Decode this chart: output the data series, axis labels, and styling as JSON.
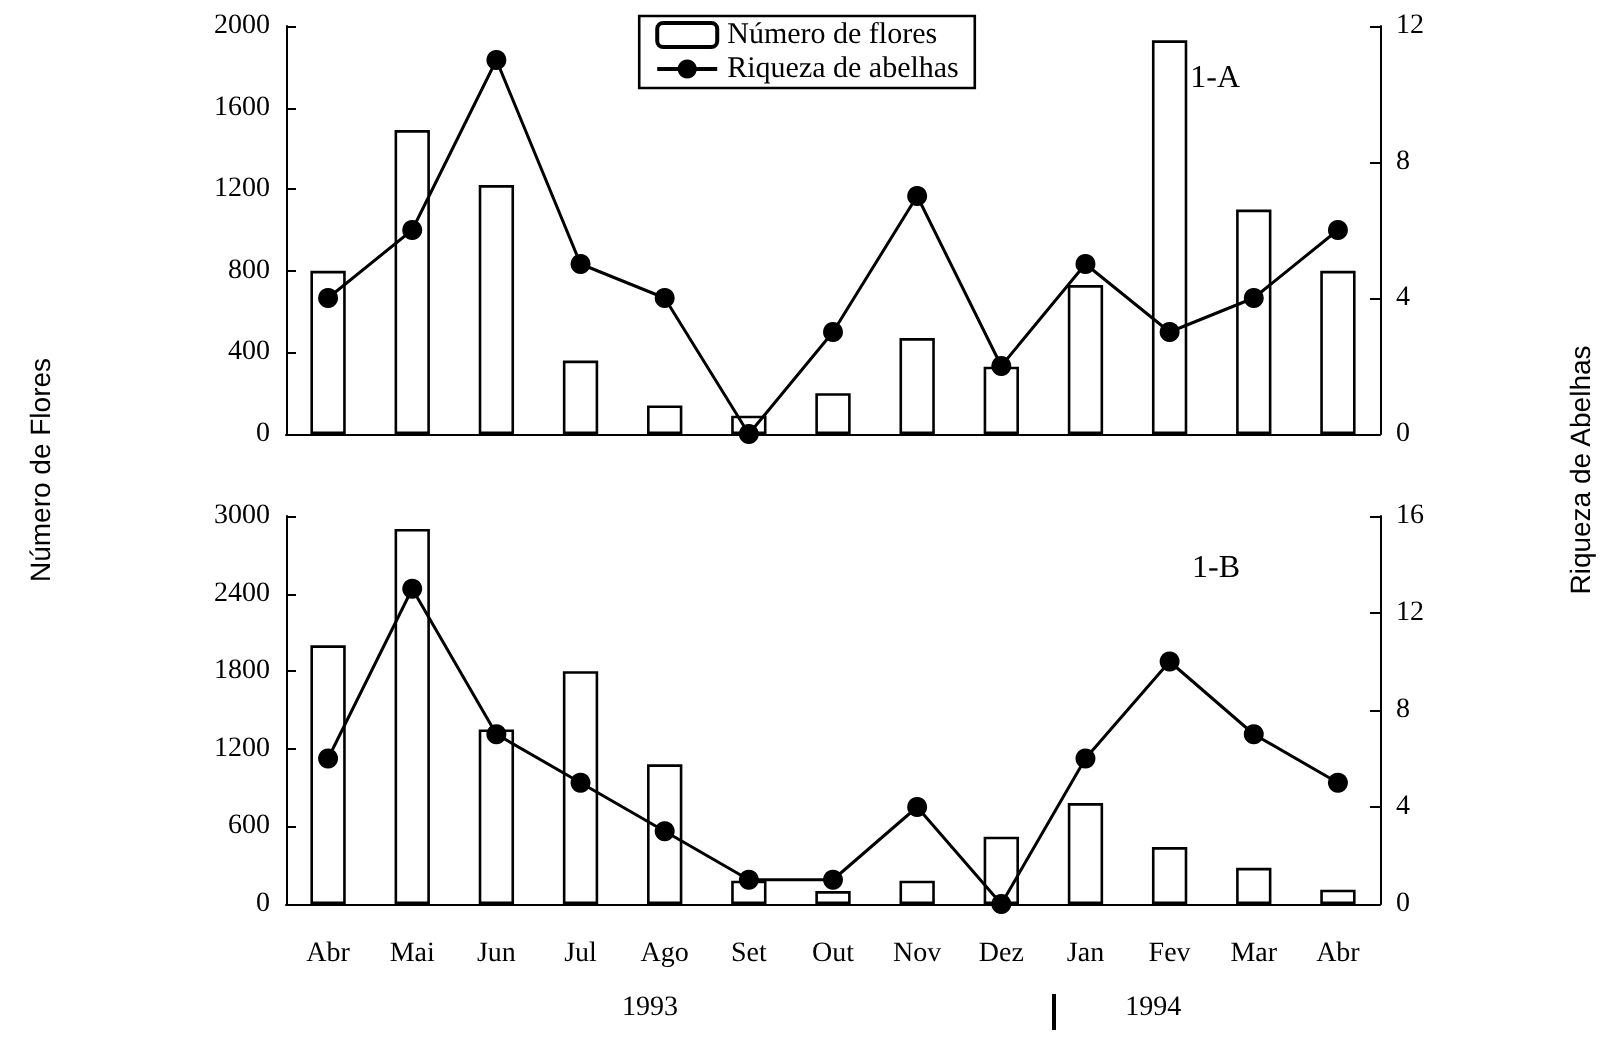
{
  "chart_data": [
    {
      "type": "bar",
      "categories": [
        null,
        null,
        null,
        null,
        null,
        null,
        null,
        null,
        null,
        null,
        null,
        null,
        null
      ],
      "ylabel": "Número de Flores",
      "y2label": "Riqueza de Abelhas",
      "annotations": [
        "1-A"
      ],
      "series": [
        {
          "name": "Número de flores",
          "color": "#ffffff",
          "values": [
            800,
            1490,
            1220,
            360,
            140,
            90,
            200,
            470,
            330,
            730,
            1930,
            1100,
            800
          ]
        },
        {
          "name": "Riqueza de abelhas",
          "type": "line",
          "axis": "y2",
          "color": "#000000",
          "values": [
            4,
            6,
            11,
            5,
            4,
            0,
            3,
            7,
            2,
            5,
            3,
            4,
            6
          ]
        }
      ],
      "ylim": [
        0,
        2000
      ],
      "yticks": [
        0,
        400,
        800,
        1200,
        1600,
        2000
      ],
      "y2lim": [
        0,
        12
      ],
      "y2ticks": [
        0,
        4,
        8,
        12
      ],
      "grid": false,
      "legend": "top",
      "marker": "circle",
      "tick_labels": "y"
    },
    {
      "type": "bar",
      "categories": [
        "Abr",
        "Mai",
        "Jun",
        "Jul",
        "Ago",
        "Set",
        "Out",
        "Nov",
        "Dez",
        "Jan",
        "Fev",
        "Mar",
        "Abr"
      ],
      "annotations": [
        "1-B",
        "1993",
        "1994"
      ],
      "series": [
        {
          "color": "#ffffff",
          "values": [
            2000,
            2900,
            1350,
            1800,
            1080,
            180,
            100,
            180,
            520,
            780,
            440,
            280,
            110
          ]
        },
        {
          "type": "line",
          "axis": "y2",
          "color": "#000000",
          "values": [
            6,
            13,
            7,
            5,
            3,
            1,
            1,
            4,
            0,
            6,
            10,
            7,
            5
          ]
        }
      ],
      "ylim": [
        0,
        3000
      ],
      "yticks": [
        0,
        600,
        1200,
        1800,
        2400,
        3000
      ],
      "y2lim": [
        0,
        16
      ],
      "y2ticks": [
        0,
        4,
        8,
        12,
        16
      ],
      "grid": false,
      "legend": false,
      "marker": "circle"
    }
  ]
}
